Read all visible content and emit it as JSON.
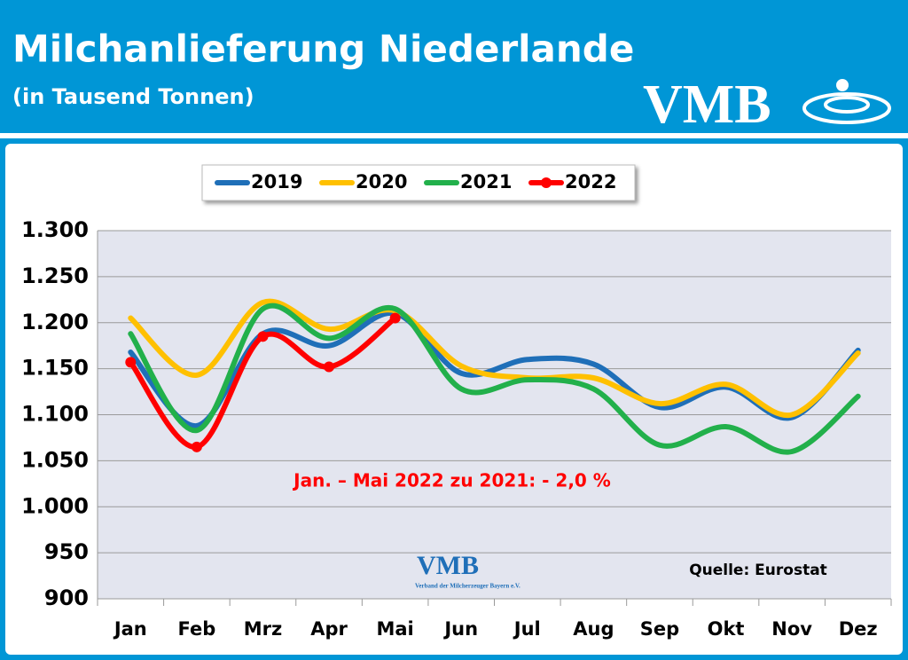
{
  "chart_data": {
    "type": "line",
    "title": "Milchanlieferung Niederlande",
    "subtitle": "(in Tausend Tonnen)",
    "logo": "VMB",
    "logo_subtitle": "Verband der Milcherzeuger Bayern e.V.",
    "annotation": "Jan. – Mai 2022 zu 2021: - 2,0 %",
    "source": "Quelle: Eurostat",
    "categories": [
      "Jan",
      "Feb",
      "Mrz",
      "Apr",
      "Mai",
      "Jun",
      "Jul",
      "Aug",
      "Sep",
      "Okt",
      "Nov",
      "Dez"
    ],
    "series": [
      {
        "name": "2019",
        "color": "#1f6fb8",
        "values": [
          1168,
          1088,
          1188,
          1175,
          1210,
          1145,
          1160,
          1155,
          1108,
          1130,
          1097,
          1170
        ]
      },
      {
        "name": "2020",
        "color": "#ffc000",
        "values": [
          1205,
          1143,
          1222,
          1193,
          1213,
          1153,
          1140,
          1140,
          1112,
          1133,
          1100,
          1167
        ]
      },
      {
        "name": "2021",
        "color": "#22b04b",
        "values": [
          1188,
          1083,
          1215,
          1183,
          1215,
          1128,
          1138,
          1128,
          1067,
          1087,
          1060,
          1120
        ]
      },
      {
        "name": "2022",
        "color": "#ff0000",
        "markers": true,
        "values": [
          1157,
          1065,
          1185,
          1152,
          1205,
          null,
          null,
          null,
          null,
          null,
          null,
          null
        ]
      }
    ],
    "ylim": [
      900,
      1300
    ],
    "yticks": [
      {
        "value": 1300,
        "label": "1.300"
      },
      {
        "value": 1250,
        "label": "1.250"
      },
      {
        "value": 1200,
        "label": "1.200"
      },
      {
        "value": 1150,
        "label": "1.150"
      },
      {
        "value": 1100,
        "label": "1.100"
      },
      {
        "value": 1050,
        "label": "1.050"
      },
      {
        "value": 1000,
        "label": "1.000"
      },
      950,
      900
    ],
    "grid": true,
    "legend": "top"
  }
}
